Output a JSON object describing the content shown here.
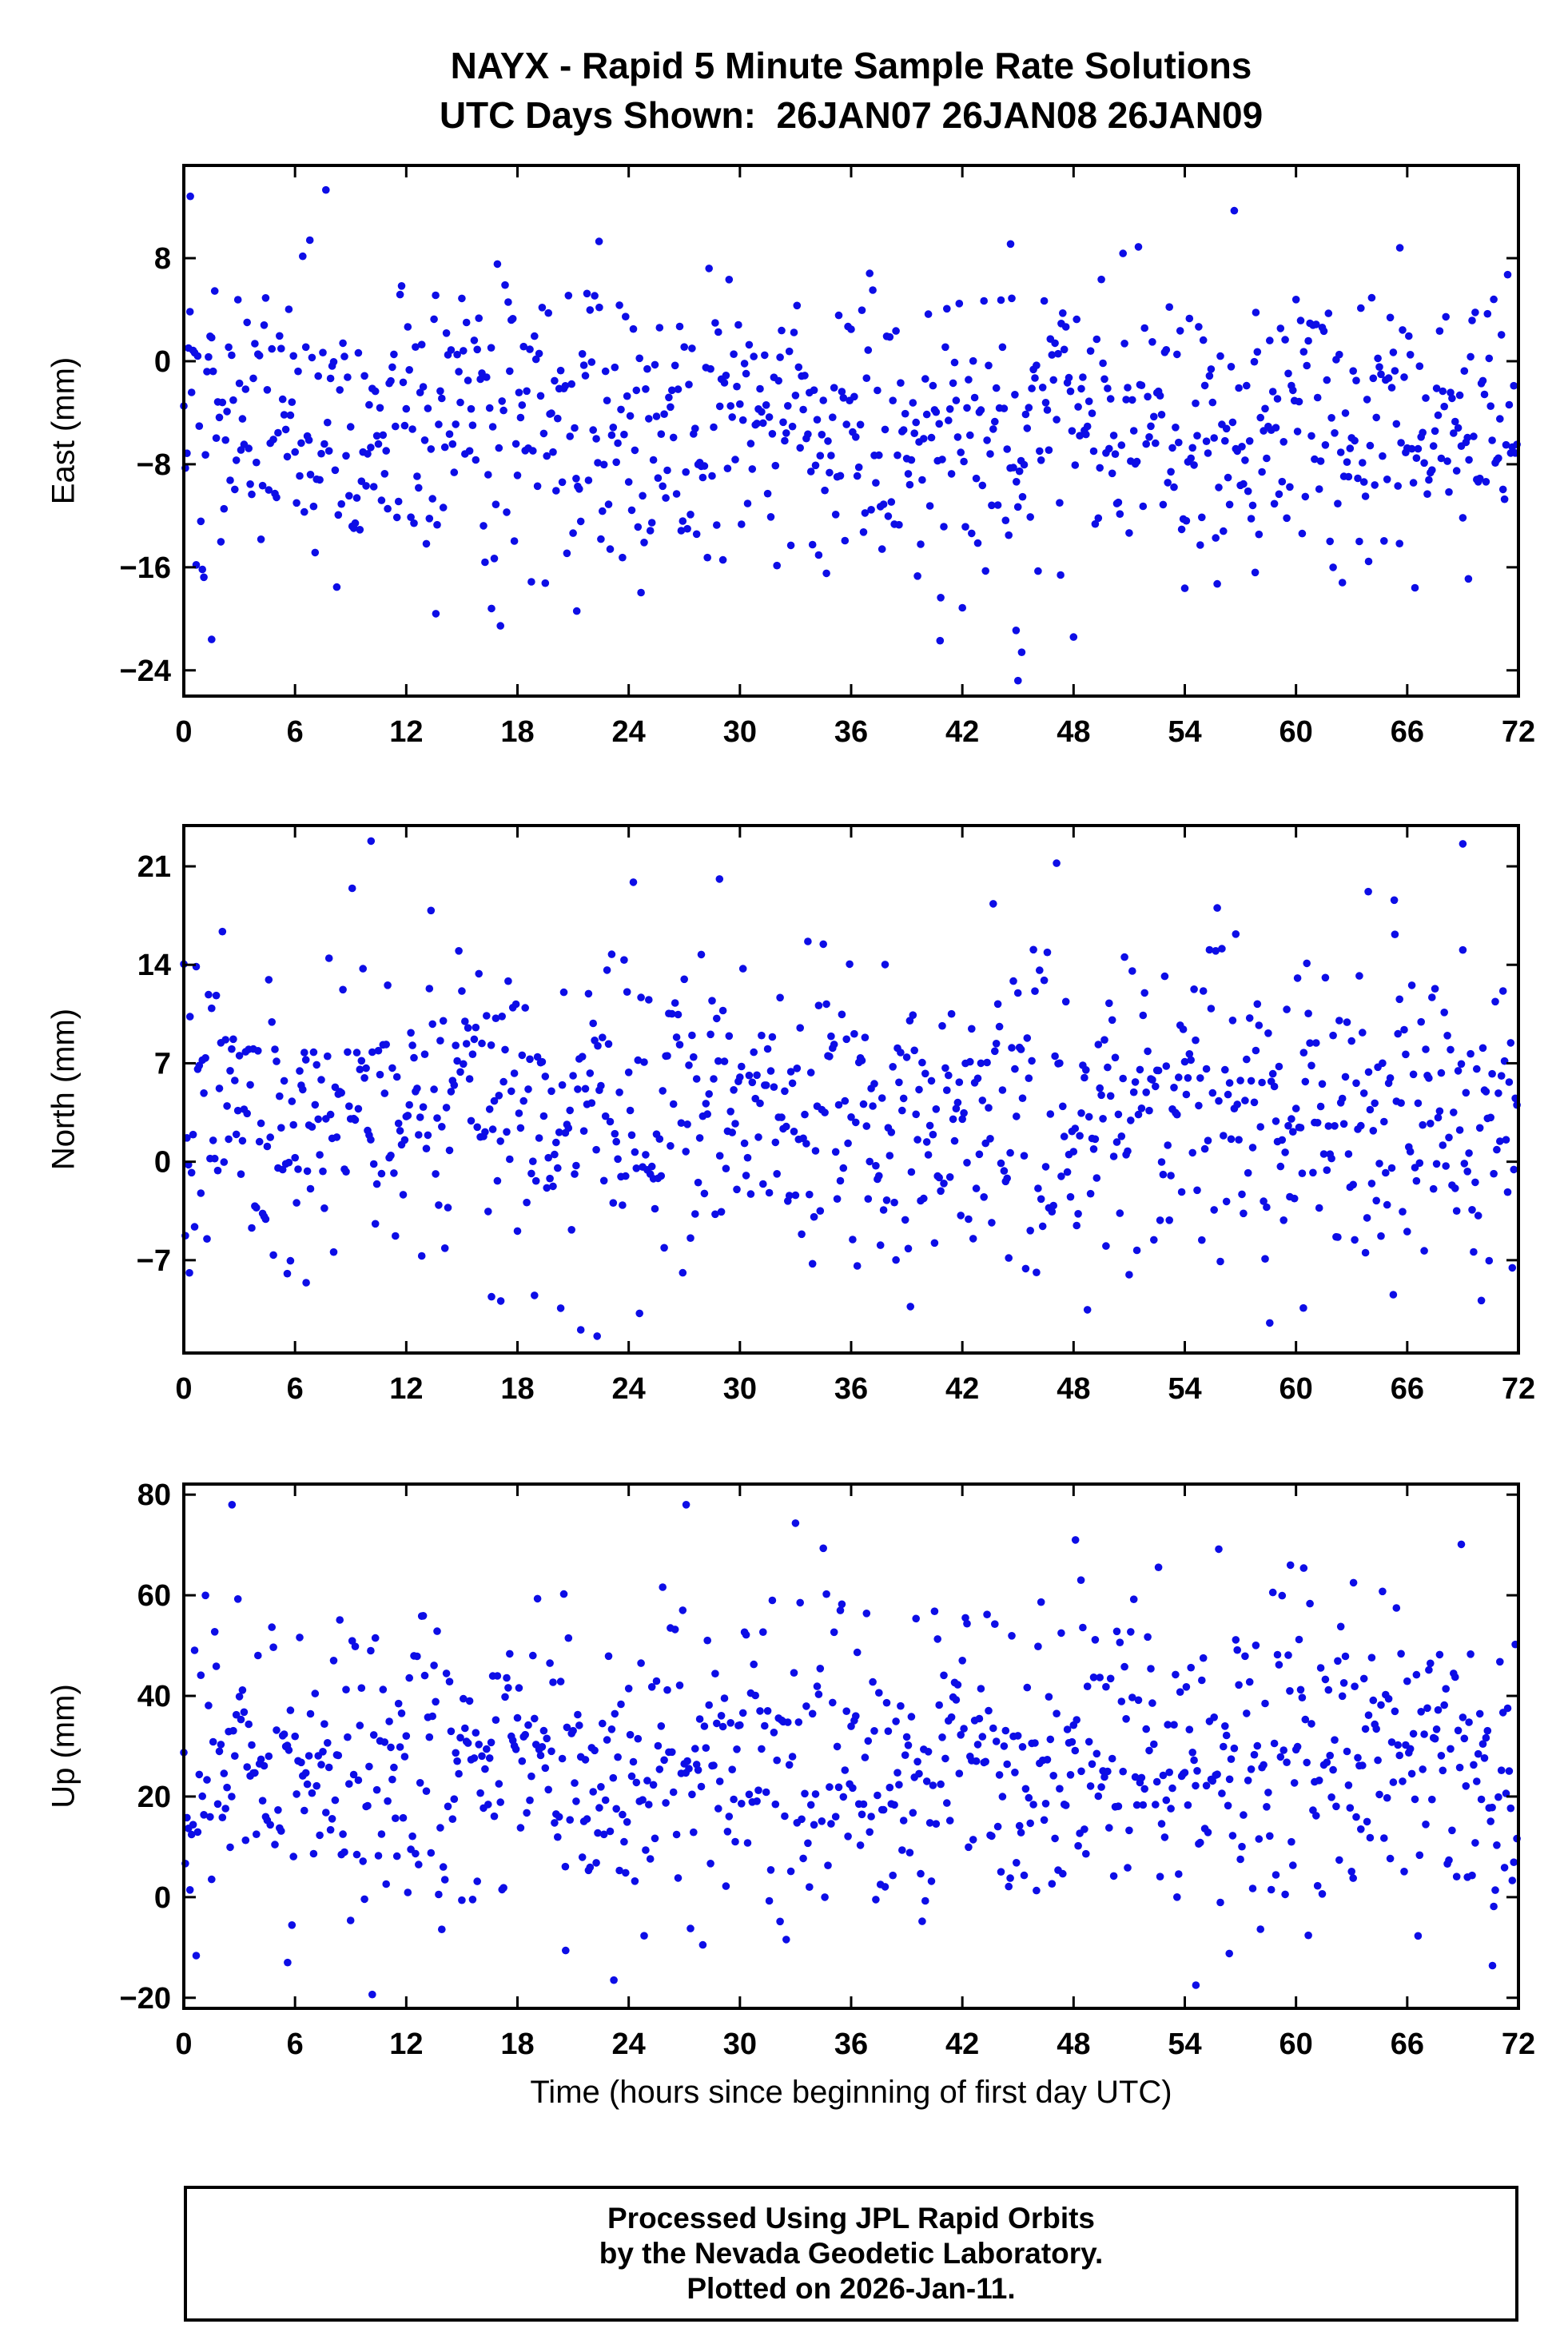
{
  "title": {
    "line1": "NAYX - Rapid 5 Minute Sample Rate Solutions",
    "line2": "UTC Days Shown:  26JAN07 26JAN08 26JAN09"
  },
  "xlabel": "Time (hours since beginning of first day UTC)",
  "footer": {
    "line1": "Processed Using JPL Rapid Orbits",
    "line2": "by the Nevada Geodetic Laboratory.",
    "line3": "Plotted on 2026-Jan-11."
  },
  "marker": {
    "color": "#0d0de6",
    "radius": 4.8
  },
  "chart_data": [
    {
      "type": "scatter",
      "name": "east",
      "ylabel": "East (mm)",
      "xlim": [
        0,
        72
      ],
      "xticks": [
        0,
        6,
        12,
        18,
        24,
        30,
        36,
        42,
        48,
        54,
        60,
        66,
        72
      ],
      "ylim": [
        -26.0,
        15.2
      ],
      "yticks": [
        -24,
        -16,
        -8,
        0,
        8
      ],
      "grid": false,
      "legend": false,
      "points_summary": {
        "n": 864,
        "x_start": 0,
        "x_step": 0.0833333,
        "y_mean": -4.5,
        "y_std": 5.5,
        "seed": 101
      },
      "outliers": [
        [
          0.35,
          12.8
        ],
        [
          1.5,
          -21.6
        ],
        [
          6.8,
          9.4
        ],
        [
          13.6,
          -19.6
        ],
        [
          16.6,
          -19.2
        ],
        [
          21.2,
          -19.4
        ],
        [
          22.4,
          9.3
        ],
        [
          40.8,
          -21.7
        ],
        [
          44.6,
          9.1
        ],
        [
          45.0,
          -24.8
        ],
        [
          45.2,
          -22.6
        ],
        [
          44.9,
          -20.9
        ],
        [
          47.3,
          -16.6
        ],
        [
          57.8,
          -16.4
        ],
        [
          65.6,
          8.8
        ],
        [
          69.3,
          -16.9
        ]
      ]
    },
    {
      "type": "scatter",
      "name": "north",
      "ylabel": "North (mm)",
      "xlim": [
        0,
        72
      ],
      "xticks": [
        0,
        6,
        12,
        18,
        24,
        30,
        36,
        42,
        48,
        54,
        60,
        66,
        72
      ],
      "ylim": [
        -13.6,
        23.9
      ],
      "yticks": [
        -7,
        0,
        7,
        14,
        21
      ],
      "grid": false,
      "legend": false,
      "points_summary": {
        "n": 864,
        "x_start": 0,
        "x_step": 0.0833333,
        "y_mean": 3.8,
        "y_std": 5.2,
        "seed": 202
      },
      "outliers": [
        [
          0.3,
          -7.9
        ],
        [
          6.6,
          -8.6
        ],
        [
          10.1,
          22.8
        ],
        [
          16.6,
          -9.6
        ],
        [
          17.1,
          -9.9
        ],
        [
          22.3,
          -12.4
        ],
        [
          28.9,
          20.1
        ],
        [
          39.2,
          -10.3
        ],
        [
          60.4,
          -10.4
        ],
        [
          63.9,
          19.2
        ],
        [
          65.3,
          18.6
        ],
        [
          69.0,
          22.6
        ]
      ]
    },
    {
      "type": "scatter",
      "name": "up",
      "ylabel": "Up (mm)",
      "xlim": [
        0,
        72
      ],
      "xticks": [
        0,
        6,
        12,
        18,
        24,
        30,
        36,
        42,
        48,
        54,
        60,
        66,
        72
      ],
      "ylim": [
        -22.1,
        82.1
      ],
      "yticks": [
        -20,
        0,
        20,
        40,
        60,
        80
      ],
      "grid": false,
      "legend": false,
      "points_summary": {
        "n": 864,
        "x_start": 0,
        "x_step": 0.0833333,
        "y_mean": 27.0,
        "y_std": 14.0,
        "seed": 303
      },
      "outliers": [
        [
          2.6,
          78.0
        ],
        [
          5.6,
          -13.0
        ],
        [
          20.6,
          -10.6
        ],
        [
          23.2,
          -16.5
        ],
        [
          27.1,
          78.0
        ],
        [
          48.1,
          71.0
        ],
        [
          48.4,
          63.0
        ],
        [
          54.6,
          -17.5
        ],
        [
          56.4,
          -11.2
        ],
        [
          59.7,
          66.0
        ],
        [
          63.1,
          62.5
        ],
        [
          70.6,
          -13.6
        ]
      ]
    }
  ]
}
